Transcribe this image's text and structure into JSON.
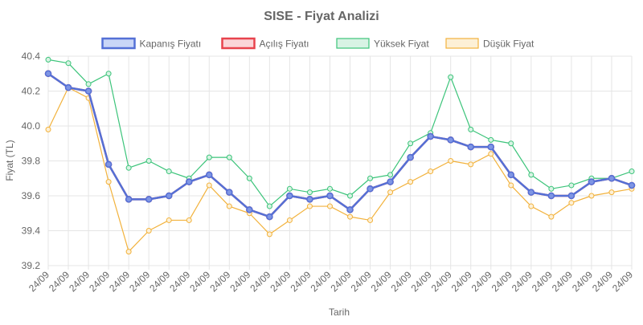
{
  "chart_data": {
    "type": "line",
    "title": "SISE - Fiyat Analizi",
    "xlabel": "Tarih",
    "ylabel": "Fiyat (TL)",
    "ylim": [
      39.2,
      40.4
    ],
    "yticks": [
      "39.2",
      "39.4",
      "39.6",
      "39.8",
      "40.0",
      "40.2",
      "40.4"
    ],
    "grid": true,
    "legend_position": "top",
    "categories": [
      "24/09",
      "24/09",
      "24/09",
      "24/09",
      "24/09",
      "24/09",
      "24/09",
      "24/09",
      "24/09",
      "24/09",
      "24/09",
      "24/09",
      "24/09",
      "24/09",
      "24/09",
      "24/09",
      "24/09",
      "24/09",
      "24/09",
      "24/09",
      "24/09",
      "24/09",
      "24/09",
      "24/09",
      "24/09",
      "24/09",
      "24/09",
      "24/09",
      "24/09",
      "24/09"
    ],
    "series": [
      {
        "name": "Kapanış Fiyatı",
        "color": "#5470d6",
        "fill": "#c9d6f7",
        "values": [
          40.3,
          40.22,
          40.2,
          39.78,
          39.58,
          39.58,
          39.6,
          39.68,
          39.72,
          39.62,
          39.52,
          39.48,
          39.6,
          39.58,
          39.6,
          39.52,
          39.64,
          39.68,
          39.82,
          39.94,
          39.92,
          39.88,
          39.88,
          39.72,
          39.62,
          39.6,
          39.6,
          39.68,
          39.7,
          39.66
        ]
      },
      {
        "name": "Açılış Fiyatı",
        "color": "#e8434d",
        "fill": "#fbd5d8",
        "values": [
          40.3,
          40.22,
          40.2,
          39.78,
          39.58,
          39.58,
          39.6,
          39.68,
          39.72,
          39.62,
          39.52,
          39.48,
          39.6,
          39.58,
          39.6,
          39.52,
          39.64,
          39.68,
          39.82,
          39.94,
          39.92,
          39.88,
          39.88,
          39.72,
          39.62,
          39.6,
          39.6,
          39.68,
          39.7,
          39.66
        ]
      },
      {
        "name": "Yüksek Fiyat",
        "color": "#3cc47a",
        "fill": "#d8f3e4",
        "values": [
          40.38,
          40.36,
          40.24,
          40.3,
          39.76,
          39.8,
          39.74,
          39.7,
          39.82,
          39.82,
          39.7,
          39.54,
          39.64,
          39.62,
          39.64,
          39.6,
          39.7,
          39.72,
          39.9,
          39.96,
          40.28,
          39.98,
          39.92,
          39.9,
          39.72,
          39.64,
          39.66,
          39.7,
          39.7,
          39.74
        ]
      },
      {
        "name": "Düşük Fiyat",
        "color": "#f2b23c",
        "fill": "#fdf0d6",
        "values": [
          39.98,
          40.22,
          40.16,
          39.68,
          39.28,
          39.4,
          39.46,
          39.46,
          39.66,
          39.54,
          39.5,
          39.38,
          39.46,
          39.54,
          39.54,
          39.48,
          39.46,
          39.62,
          39.68,
          39.74,
          39.8,
          39.78,
          39.84,
          39.66,
          39.54,
          39.48,
          39.56,
          39.6,
          39.62,
          39.64
        ]
      }
    ]
  }
}
